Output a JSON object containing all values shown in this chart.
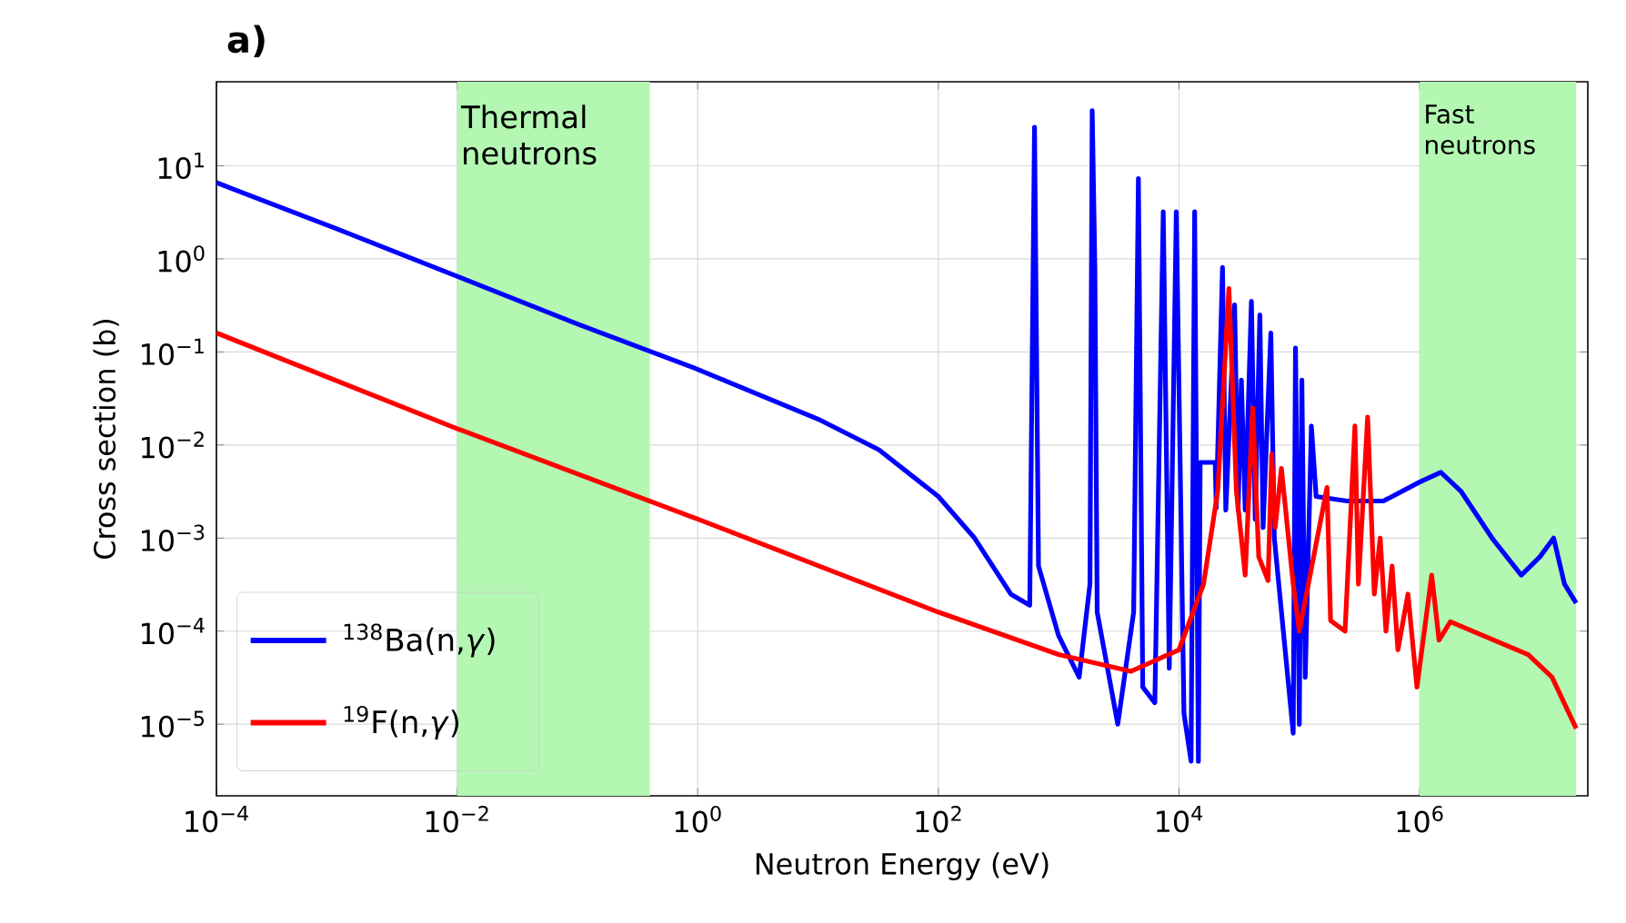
{
  "chart_data": {
    "type": "line",
    "title": "**a)**",
    "xlabel": "Neutron Energy (eV)",
    "ylabel": "Cross section (b)",
    "log": "xy",
    "grid": true,
    "legend": "bottom left",
    "line_style": "solid",
    "marker": "none",
    "xlim": [
      0.0001,
      25000000
    ],
    "ylim": [
      1.7e-06,
      80
    ],
    "xticks": [
      {
        "value": 0.0001,
        "label": "10$^{−4}$"
      },
      {
        "value": 0.01,
        "label": "10$^{−2}$"
      },
      {
        "value": 1,
        "label": "10$^{0}$"
      },
      {
        "value": 100,
        "label": "10$^{2}$"
      },
      {
        "value": 10000,
        "label": "10$^{4}$"
      },
      {
        "value": 1000000,
        "label": "10$^{6}$"
      }
    ],
    "yticks": [
      {
        "value": 1e-05,
        "label": "10$^{−5}$"
      },
      {
        "value": 0.0001,
        "label": "10$^{−4}$"
      },
      {
        "value": 0.001,
        "label": "10$^{−3}$"
      },
      {
        "value": 0.01,
        "label": "10$^{−2}$"
      },
      {
        "value": 0.1,
        "label": "10$^{−1}$"
      },
      {
        "value": 1,
        "label": "10$^{0}$"
      },
      {
        "value": 10,
        "label": "10$^{1}$"
      }
    ],
    "bands": [
      {
        "axis": "x",
        "from": 0.01,
        "to": 0.4,
        "label": "Thermal neutrons",
        "color": "#b3f7b3"
      },
      {
        "axis": "x",
        "from": 1000000,
        "to": 20000000,
        "label": "Fast neutrons",
        "color": "#b3f7b3"
      }
    ],
    "series": [
      {
        "name": "$^{138}$Ba(n,*γ*)",
        "color": "#0000ff",
        "x": [
          0.0001,
          0.001,
          0.01,
          0.1,
          1,
          10,
          32,
          100,
          200,
          400,
          575,
          630,
          680,
          1000,
          1480,
          1820,
          1900,
          2000,
          2090,
          3100,
          4200,
          4600,
          5000,
          6300,
          7400,
          8300,
          9500,
          11000,
          12600,
          13500,
          14500,
          15000,
          20000,
          20400,
          23000,
          24500,
          29000,
          31000,
          33000,
          35500,
          40000,
          43000,
          47000,
          50000,
          58000,
          62000,
          89000,
          93000,
          100000,
          105000,
          112000,
          126000,
          138000,
          250000,
          500000,
          1000000,
          1500000,
          2200000,
          4000000,
          7000000,
          10000000,
          13000000,
          16000000,
          20000000
        ],
        "values": [
          6.6,
          2.1,
          0.65,
          0.2,
          0.065,
          0.019,
          0.0089,
          0.0028,
          0.001,
          0.00025,
          0.00019,
          26,
          0.0005,
          8.9e-05,
          3.2e-05,
          0.00032,
          39,
          0.8,
          0.00016,
          1e-05,
          0.00016,
          7.3,
          2.5e-05,
          1.7e-05,
          3.2,
          4e-05,
          3.2,
          1.3e-05,
          4e-06,
          3.2,
          4e-06,
          0.0065,
          0.0065,
          0.0021,
          0.81,
          0.002,
          0.32,
          0.002,
          0.05,
          0.002,
          0.35,
          0.0016,
          0.25,
          0.0013,
          0.16,
          0.001,
          8e-06,
          0.11,
          1e-05,
          0.05,
          3.2e-05,
          0.016,
          0.0028,
          0.0025,
          0.0025,
          0.004,
          0.0051,
          0.0032,
          0.001,
          0.0004,
          0.00063,
          0.001,
          0.00032,
          0.0002
        ]
      },
      {
        "name": "$^{19}$F(n,*γ*)",
        "color": "#ff0000",
        "x": [
          0.0001,
          0.01,
          1,
          100,
          1000,
          4000,
          10000,
          16000,
          21000,
          26000,
          30000,
          35500,
          41000,
          46000,
          55000,
          59000,
          63000,
          71000,
          89000,
          100000,
          170000,
          182000,
          240000,
          290000,
          310000,
          370000,
          420000,
          470000,
          525000,
          590000,
          660000,
          800000,
          950000,
          1260000,
          1450000,
          1800000,
          8000000,
          12600000,
          20000000
        ],
        "values": [
          0.16,
          0.015,
          0.0016,
          0.00016,
          5.6e-05,
          3.7e-05,
          6.3e-05,
          0.00032,
          0.0032,
          0.48,
          0.0032,
          0.0004,
          0.025,
          0.00063,
          0.00035,
          0.008,
          0.0013,
          0.0056,
          0.00032,
          0.0001,
          0.0035,
          0.00013,
          0.0001,
          0.016,
          0.00032,
          0.02,
          0.00025,
          0.001,
          0.0001,
          0.0005,
          6.3e-05,
          0.00025,
          2.5e-05,
          0.0004,
          8e-05,
          0.000126,
          5.6e-05,
          3.2e-05,
          9e-06
        ]
      }
    ]
  }
}
